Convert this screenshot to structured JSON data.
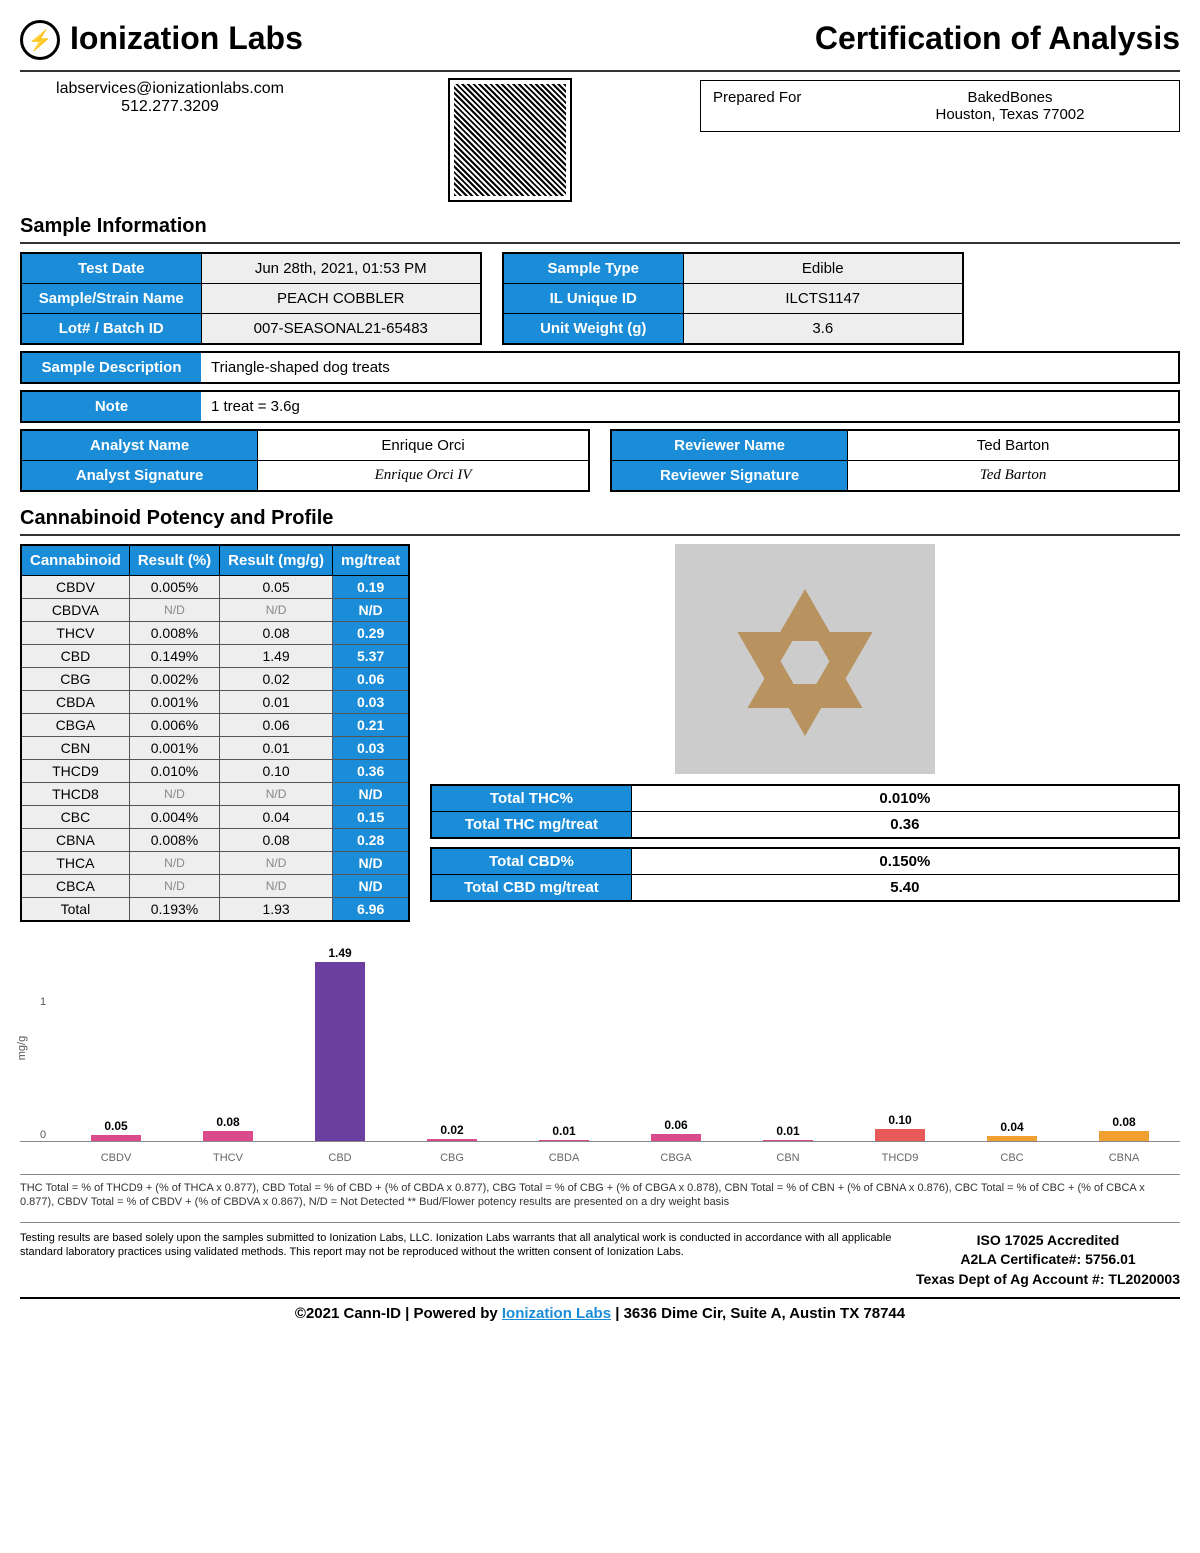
{
  "header": {
    "company": "Ionization Labs",
    "title": "Certification of Analysis",
    "email": "labservices@ionizationlabs.com",
    "phone": "512.277.3209",
    "prepared_label": "Prepared For",
    "prepared_name": "BakedBones",
    "prepared_addr": "Houston, Texas 77002"
  },
  "sections": {
    "sample_info": "Sample Information",
    "potency": "Cannabinoid Potency and Profile"
  },
  "sample_left": [
    {
      "label": "Test Date",
      "value": "Jun 28th, 2021, 01:53 PM"
    },
    {
      "label": "Sample/Strain Name",
      "value": "PEACH COBBLER"
    },
    {
      "label": "Lot# / Batch ID",
      "value": "007-SEASONAL21-65483"
    }
  ],
  "sample_right": [
    {
      "label": "Sample Type",
      "value": "Edible"
    },
    {
      "label": "IL Unique ID",
      "value": "ILCTS1147"
    },
    {
      "label": "Unit Weight (g)",
      "value": "3.6"
    }
  ],
  "sample_desc": {
    "label": "Sample Description",
    "value": "Triangle-shaped dog treats"
  },
  "note": {
    "label": "Note",
    "value": "1 treat = 3.6g"
  },
  "analyst": {
    "name_label": "Analyst Name",
    "name": "Enrique Orci",
    "sig_label": "Analyst Signature",
    "sig": "Enrique Orci IV"
  },
  "reviewer": {
    "name_label": "Reviewer Name",
    "name": "Ted Barton",
    "sig_label": "Reviewer Signature",
    "sig": "Ted Barton"
  },
  "potency_headers": [
    "Cannabinoid",
    "Result (%)",
    "Result (mg/g)",
    "mg/treat"
  ],
  "potency_rows": [
    {
      "name": "CBDV",
      "pct": "0.005%",
      "mgg": "0.05",
      "mgt": "0.19"
    },
    {
      "name": "CBDVA",
      "pct": "N/D",
      "mgg": "N/D",
      "mgt": "N/D",
      "nd": true
    },
    {
      "name": "THCV",
      "pct": "0.008%",
      "mgg": "0.08",
      "mgt": "0.29"
    },
    {
      "name": "CBD",
      "pct": "0.149%",
      "mgg": "1.49",
      "mgt": "5.37"
    },
    {
      "name": "CBG",
      "pct": "0.002%",
      "mgg": "0.02",
      "mgt": "0.06"
    },
    {
      "name": "CBDA",
      "pct": "0.001%",
      "mgg": "0.01",
      "mgt": "0.03"
    },
    {
      "name": "CBGA",
      "pct": "0.006%",
      "mgg": "0.06",
      "mgt": "0.21"
    },
    {
      "name": "CBN",
      "pct": "0.001%",
      "mgg": "0.01",
      "mgt": "0.03"
    },
    {
      "name": "THCD9",
      "pct": "0.010%",
      "mgg": "0.10",
      "mgt": "0.36"
    },
    {
      "name": "THCD8",
      "pct": "N/D",
      "mgg": "N/D",
      "mgt": "N/D",
      "nd": true
    },
    {
      "name": "CBC",
      "pct": "0.004%",
      "mgg": "0.04",
      "mgt": "0.15"
    },
    {
      "name": "CBNA",
      "pct": "0.008%",
      "mgg": "0.08",
      "mgt": "0.28"
    },
    {
      "name": "THCA",
      "pct": "N/D",
      "mgg": "N/D",
      "mgt": "N/D",
      "nd": true
    },
    {
      "name": "CBCA",
      "pct": "N/D",
      "mgg": "N/D",
      "mgt": "N/D",
      "nd": true
    },
    {
      "name": "Total",
      "pct": "0.193%",
      "mgg": "1.93",
      "mgt": "6.96"
    }
  ],
  "totals_thc": [
    {
      "label": "Total THC%",
      "value": "0.010%"
    },
    {
      "label": "Total THC mg/treat",
      "value": "0.36"
    }
  ],
  "totals_cbd": [
    {
      "label": "Total CBD%",
      "value": "0.150%"
    },
    {
      "label": "Total CBD mg/treat",
      "value": "5.40"
    }
  ],
  "chart": {
    "y_label": "mg/g",
    "y_max": 1.5,
    "y_ticks": [
      {
        "v": "0",
        "pos": 100
      },
      {
        "v": "1",
        "pos": 33
      }
    ],
    "bars": [
      {
        "name": "CBDV",
        "val": "0.05",
        "h": 0.05,
        "color": "#d94a8c"
      },
      {
        "name": "THCV",
        "val": "0.08",
        "h": 0.08,
        "color": "#d94a8c"
      },
      {
        "name": "CBD",
        "val": "1.49",
        "h": 1.49,
        "color": "#6b3fa0"
      },
      {
        "name": "CBG",
        "val": "0.02",
        "h": 0.02,
        "color": "#d94a8c"
      },
      {
        "name": "CBDA",
        "val": "0.01",
        "h": 0.01,
        "color": "#d94a8c"
      },
      {
        "name": "CBGA",
        "val": "0.06",
        "h": 0.06,
        "color": "#d94a8c"
      },
      {
        "name": "CBN",
        "val": "0.01",
        "h": 0.01,
        "color": "#d94a8c"
      },
      {
        "name": "THCD9",
        "val": "0.10",
        "h": 0.1,
        "color": "#e85a5a"
      },
      {
        "name": "CBC",
        "val": "0.04",
        "h": 0.04,
        "color": "#f0a030"
      },
      {
        "name": "CBNA",
        "val": "0.08",
        "h": 0.08,
        "color": "#f0a030"
      }
    ]
  },
  "footnote": "THC Total = % of THCD9 + (% of THCA x 0.877), CBD Total = % of CBD + (% of CBDA x 0.877), CBG Total = % of CBG + (% of CBGA x 0.878), CBN Total = % of CBN + (% of CBNA x 0.876), CBC Total = % of CBC + (% of CBCA x 0.877), CBDV Total = % of CBDV + (% of CBDVA x 0.867), N/D = Not Detected ** Bud/Flower potency results are presented on a dry weight basis",
  "disclaimer": "Testing results are based solely upon the samples submitted to Ionization Labs, LLC. Ionization Labs warrants that all analytical work is conducted in accordance with all applicable standard laboratory practices using validated methods. This report may not be reproduced without the written consent of Ionization Labs.",
  "accreditation": {
    "iso": "ISO 17025 Accredited",
    "cert": "A2LA Certificate#: 5756.01",
    "tx": "Texas Dept of Ag Account #: TL2020003"
  },
  "bottom": {
    "copyright": "©2021 Cann-ID | Powered by ",
    "link": "Ionization Labs",
    "addr": " | 3636 Dime Cir, Suite A, Austin TX 78744"
  }
}
